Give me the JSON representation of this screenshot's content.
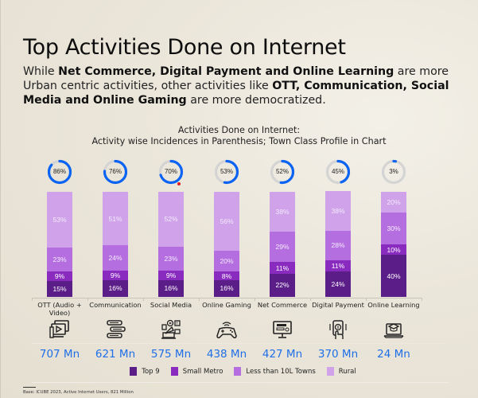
{
  "header": {
    "title": "Top Activities Done on Internet",
    "subtitle_parts": [
      {
        "text": "While ",
        "bold": false
      },
      {
        "text": "Net Commerce, Digital Payment and Online Learning",
        "bold": true
      },
      {
        "text": " are more Urban centric activities, other activities like ",
        "bold": false
      },
      {
        "text": "OTT, Communication, Social Media and Online Gaming",
        "bold": true
      },
      {
        "text": " are more democratized.",
        "bold": false
      }
    ]
  },
  "chart_title": {
    "line1": "Activities Done on Internet:",
    "line2": "Activity wise Incidences in Parenthesis; Town Class Profile in Chart"
  },
  "colors": {
    "top9": "#5b1d87",
    "small_metro": "#8a2bbf",
    "less_than_10l": "#b56ee0",
    "rural": "#cfa2ea",
    "ring_active": "#0b63f3",
    "ring_track": "#d4d4d4",
    "total_text": "#1f6fe8"
  },
  "chart_data": {
    "type": "bar",
    "stacked": true,
    "title": "Activities Done on Internet: Activity wise Incidences in Parenthesis; Town Class Profile in Chart",
    "categories": [
      "OTT (Audio + Video)",
      "Communication",
      "Social Media",
      "Online Gaming",
      "Net Commerce",
      "Digital Payment",
      "Online Learning"
    ],
    "series": [
      {
        "name": "Top 9",
        "values": [
          15,
          16,
          16,
          16,
          22,
          24,
          40
        ]
      },
      {
        "name": "Small Metro",
        "values": [
          9,
          9,
          9,
          8,
          11,
          11,
          10
        ]
      },
      {
        "name": "Less than 10L Towns",
        "values": [
          23,
          24,
          23,
          20,
          29,
          28,
          30
        ]
      },
      {
        "name": "Rural",
        "values": [
          53,
          51,
          52,
          56,
          38,
          38,
          20
        ]
      }
    ],
    "incidence_pct": [
      86,
      76,
      70,
      53,
      52,
      45,
      3
    ],
    "users_mn": [
      707,
      621,
      575,
      438,
      427,
      370,
      24
    ],
    "ylim": [
      0,
      100
    ],
    "legend_position": "bottom",
    "grid": false
  },
  "activities": [
    {
      "label": "OTT (Audio + Video)",
      "incidence": "86%",
      "total": "707 Mn",
      "icon": "video-player-icon",
      "segments": {
        "top9": "15%",
        "small_metro": "9%",
        "less_than_10l": "23%",
        "rural": "53%"
      }
    },
    {
      "label": "Communication",
      "incidence": "76%",
      "total": "621 Mn",
      "icon": "chat-bubbles-icon",
      "segments": {
        "top9": "16%",
        "small_metro": "9%",
        "less_than_10l": "24%",
        "rural": "51%"
      }
    },
    {
      "label": "Social Media",
      "incidence": "70%",
      "total": "575 Mn",
      "icon": "social-media-megaphone-icon",
      "segments": {
        "top9": "16%",
        "small_metro": "9%",
        "less_than_10l": "23%",
        "rural": "52%"
      }
    },
    {
      "label": "Online Gaming",
      "incidence": "53%",
      "total": "438 Mn",
      "icon": "game-controller-icon",
      "segments": {
        "top9": "16%",
        "small_metro": "8%",
        "less_than_10l": "20%",
        "rural": "56%"
      }
    },
    {
      "label": "Net Commerce",
      "incidence": "52%",
      "total": "427 Mn",
      "icon": "computer-shopping-icon",
      "segments": {
        "top9": "22%",
        "small_metro": "11%",
        "less_than_10l": "29%",
        "rural": "38%"
      }
    },
    {
      "label": "Digital Payment",
      "incidence": "45%",
      "total": "370 Mn",
      "icon": "mobile-payment-icon",
      "segments": {
        "top9": "24%",
        "small_metro": "11%",
        "less_than_10l": "28%",
        "rural": "38%"
      }
    },
    {
      "label": "Online Learning",
      "incidence": "3%",
      "total": "24 Mn",
      "icon": "laptop-graduation-icon",
      "segments": {
        "top9": "40%",
        "small_metro": "10%",
        "less_than_10l": "30%",
        "rural": "20%"
      }
    }
  ],
  "legend": [
    {
      "label": "Top 9",
      "key": "top9"
    },
    {
      "label": "Small Metro",
      "key": "small_metro"
    },
    {
      "label": "Less than 10L Towns",
      "key": "less_than_10l"
    },
    {
      "label": "Rural",
      "key": "rural"
    }
  ],
  "footnote": "Base: ICUBE 2023, Active Internet Users, 821 Million"
}
